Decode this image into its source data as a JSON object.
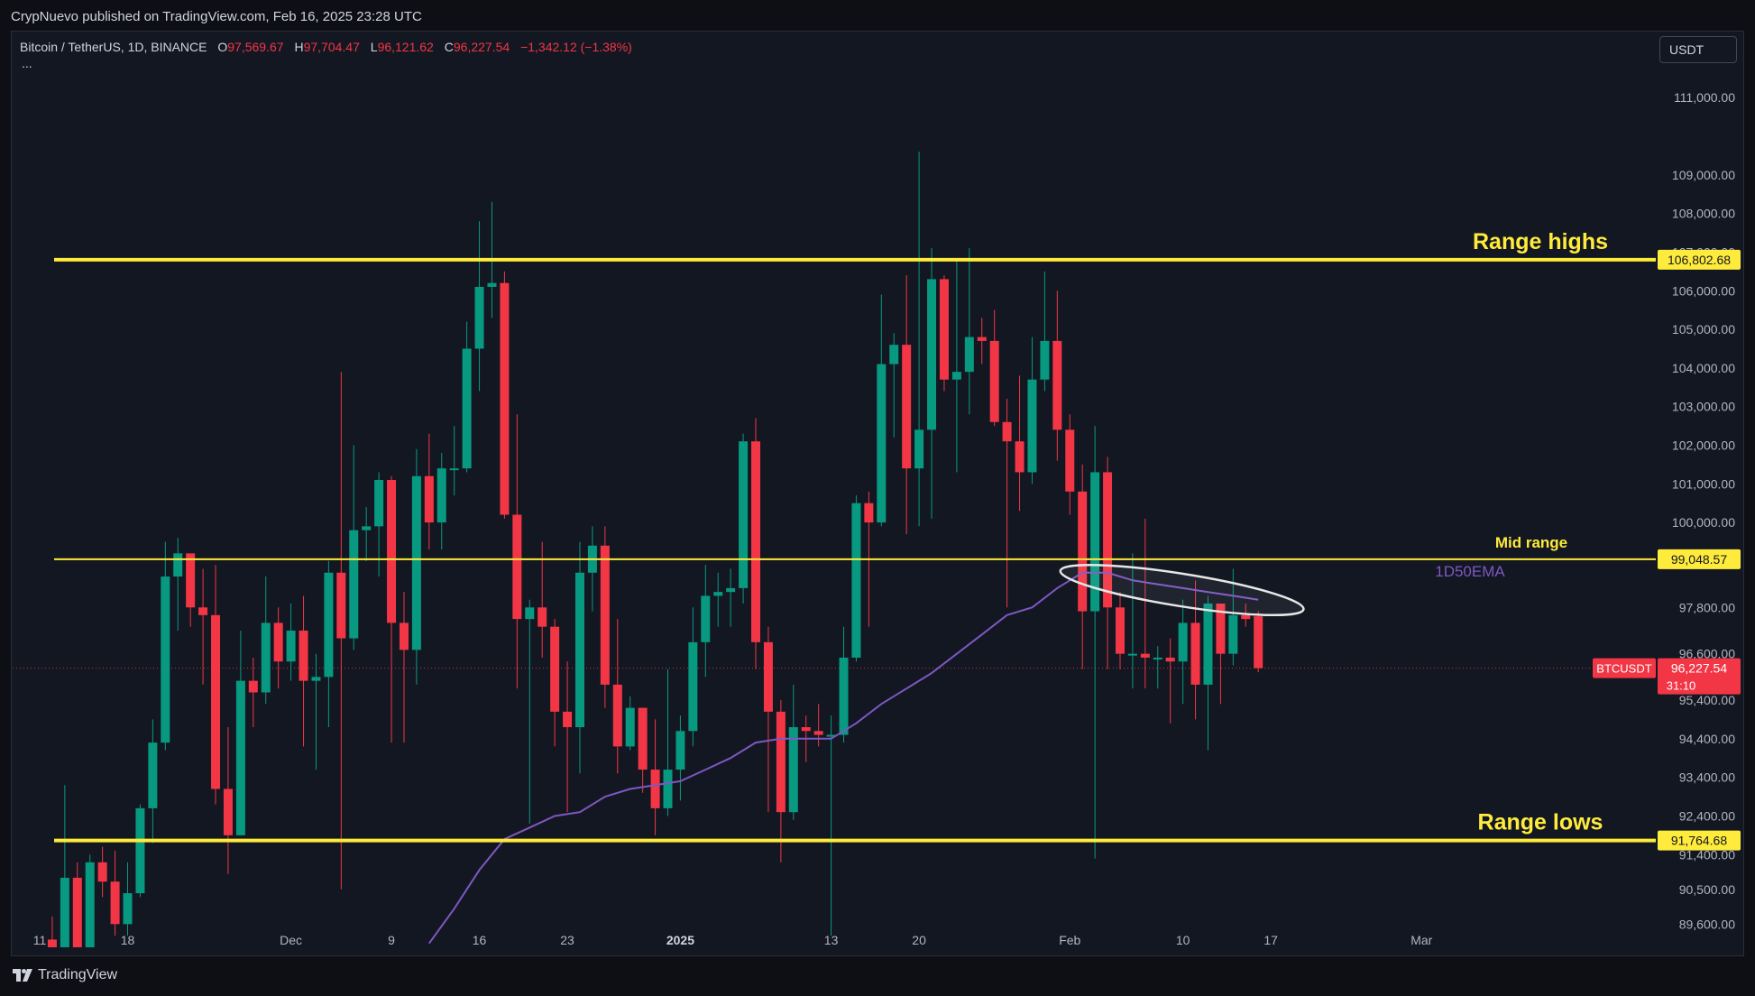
{
  "header": {
    "published": "CrypNuevo published on TradingView.com, Feb 16, 2025 23:28 UTC"
  },
  "legend": {
    "symbol": "Bitcoin / TetherUS, 1D, BINANCE",
    "o_label": "O",
    "o": "97,569.67",
    "h_label": "H",
    "h": "97,704.47",
    "l_label": "L",
    "l": "96,121.62",
    "c_label": "C",
    "c": "96,227.54",
    "change": "−1,342.12 (−1.38%)",
    "more": "..."
  },
  "currency_button": "USDT",
  "footer": {
    "brand": "TradingView"
  },
  "colors": {
    "up": "#089981",
    "down": "#f23645",
    "ema": "#7e57c2",
    "level": "#ffeb3b",
    "background": "#131722"
  },
  "chart_data": {
    "type": "candlestick",
    "symbol": "BTCUSDT",
    "interval": "1D",
    "ylim": [
      89000,
      112500
    ],
    "y_ticks": [
      {
        "value": 111000,
        "label": "111,000.00"
      },
      {
        "value": 109000,
        "label": "109,000.00"
      },
      {
        "value": 108000,
        "label": "108,000.00"
      },
      {
        "value": 107000,
        "label": "107,000.00"
      },
      {
        "value": 106000,
        "label": "106,000.00"
      },
      {
        "value": 105000,
        "label": "105,000.00"
      },
      {
        "value": 104000,
        "label": "104,000.00"
      },
      {
        "value": 103000,
        "label": "103,000.00"
      },
      {
        "value": 102000,
        "label": "102,000.00"
      },
      {
        "value": 101000,
        "label": "101,000.00"
      },
      {
        "value": 100000,
        "label": "100,000.00"
      },
      {
        "value": 97800,
        "label": "97,800.00"
      },
      {
        "value": 96600,
        "label": "96,600.00"
      },
      {
        "value": 95400,
        "label": "95,400.00"
      },
      {
        "value": 94400,
        "label": "94,400.00"
      },
      {
        "value": 93400,
        "label": "93,400.00"
      },
      {
        "value": 92400,
        "label": "92,400.00"
      },
      {
        "value": 91400,
        "label": "91,400.00"
      },
      {
        "value": 90500,
        "label": "90,500.00"
      },
      {
        "value": 89600,
        "label": "89,600.00"
      }
    ],
    "x_ticks": [
      {
        "date": "2024-11-11",
        "label": "11"
      },
      {
        "date": "2024-11-18",
        "label": "18"
      },
      {
        "date": "2024-12-01",
        "label": "Dec"
      },
      {
        "date": "2024-12-09",
        "label": "9"
      },
      {
        "date": "2024-12-16",
        "label": "16"
      },
      {
        "date": "2024-12-23",
        "label": "23"
      },
      {
        "date": "2025-01-01",
        "label": "2025"
      },
      {
        "date": "2025-01-13",
        "label": "13"
      },
      {
        "date": "2025-01-20",
        "label": "20"
      },
      {
        "date": "2025-02-01",
        "label": "Feb"
      },
      {
        "date": "2025-02-10",
        "label": "10"
      },
      {
        "date": "2025-02-17",
        "label": "17"
      },
      {
        "date": "2025-03-01",
        "label": "Mar"
      }
    ],
    "x_range": [
      "2024-11-10",
      "2025-03-02"
    ],
    "candles": [
      {
        "date": "2024-11-12",
        "o": 89200,
        "h": 89800,
        "l": 89000,
        "c": 89000
      },
      {
        "date": "2024-11-13",
        "o": 89000,
        "h": 93200,
        "l": 89000,
        "c": 90800
      },
      {
        "date": "2024-11-14",
        "o": 90800,
        "h": 91200,
        "l": 89000,
        "c": 89000
      },
      {
        "date": "2024-11-15",
        "o": 89000,
        "h": 91400,
        "l": 89000,
        "c": 91200
      },
      {
        "date": "2024-11-16",
        "o": 91200,
        "h": 91600,
        "l": 90300,
        "c": 90700
      },
      {
        "date": "2024-11-17",
        "o": 90700,
        "h": 91500,
        "l": 89300,
        "c": 89600
      },
      {
        "date": "2024-11-18",
        "o": 89600,
        "h": 91200,
        "l": 89300,
        "c": 90400
      },
      {
        "date": "2024-11-19",
        "o": 90400,
        "h": 92700,
        "l": 90300,
        "c": 92600
      },
      {
        "date": "2024-11-20",
        "o": 92600,
        "h": 94900,
        "l": 91700,
        "c": 94300
      },
      {
        "date": "2024-11-21",
        "o": 94300,
        "h": 99500,
        "l": 94100,
        "c": 98600
      },
      {
        "date": "2024-11-22",
        "o": 98600,
        "h": 99600,
        "l": 97200,
        "c": 99200
      },
      {
        "date": "2024-11-23",
        "o": 99200,
        "h": 99000,
        "l": 97300,
        "c": 97800
      },
      {
        "date": "2024-11-24",
        "o": 97800,
        "h": 98800,
        "l": 95800,
        "c": 97600
      },
      {
        "date": "2024-11-25",
        "o": 97600,
        "h": 98900,
        "l": 92700,
        "c": 93100
      },
      {
        "date": "2024-11-26",
        "o": 93100,
        "h": 94700,
        "l": 90900,
        "c": 91900
      },
      {
        "date": "2024-11-27",
        "o": 91900,
        "h": 97200,
        "l": 91900,
        "c": 95900
      },
      {
        "date": "2024-11-28",
        "o": 95900,
        "h": 96500,
        "l": 94700,
        "c": 95600
      },
      {
        "date": "2024-11-29",
        "o": 95600,
        "h": 98600,
        "l": 95300,
        "c": 97400
      },
      {
        "date": "2024-11-30",
        "o": 97400,
        "h": 97800,
        "l": 95700,
        "c": 96400
      },
      {
        "date": "2024-12-01",
        "o": 96400,
        "h": 97900,
        "l": 95900,
        "c": 97200
      },
      {
        "date": "2024-12-02",
        "o": 97200,
        "h": 98100,
        "l": 94200,
        "c": 95900
      },
      {
        "date": "2024-12-03",
        "o": 95900,
        "h": 96600,
        "l": 93600,
        "c": 96000
      },
      {
        "date": "2024-12-04",
        "o": 96000,
        "h": 99000,
        "l": 94700,
        "c": 98700
      },
      {
        "date": "2024-12-05",
        "o": 98700,
        "h": 103900,
        "l": 90500,
        "c": 97000
      },
      {
        "date": "2024-12-06",
        "o": 97000,
        "h": 102000,
        "l": 96700,
        "c": 99800
      },
      {
        "date": "2024-12-07",
        "o": 99800,
        "h": 100400,
        "l": 99000,
        "c": 99900
      },
      {
        "date": "2024-12-08",
        "o": 99900,
        "h": 101300,
        "l": 98600,
        "c": 101100
      },
      {
        "date": "2024-12-09",
        "o": 101100,
        "h": 101200,
        "l": 94300,
        "c": 97400
      },
      {
        "date": "2024-12-10",
        "o": 97400,
        "h": 98200,
        "l": 94300,
        "c": 96700
      },
      {
        "date": "2024-12-11",
        "o": 96700,
        "h": 101900,
        "l": 95800,
        "c": 101200
      },
      {
        "date": "2024-12-12",
        "o": 101200,
        "h": 102300,
        "l": 99300,
        "c": 100000
      },
      {
        "date": "2024-12-13",
        "o": 100000,
        "h": 101800,
        "l": 99300,
        "c": 101400
      },
      {
        "date": "2024-12-14",
        "o": 101400,
        "h": 102500,
        "l": 100700,
        "c": 101400
      },
      {
        "date": "2024-12-15",
        "o": 101400,
        "h": 105200,
        "l": 101300,
        "c": 104500
      },
      {
        "date": "2024-12-16",
        "o": 104500,
        "h": 107800,
        "l": 103400,
        "c": 106100
      },
      {
        "date": "2024-12-17",
        "o": 106100,
        "h": 108300,
        "l": 105300,
        "c": 106200
      },
      {
        "date": "2024-12-18",
        "o": 106200,
        "h": 106500,
        "l": 100100,
        "c": 100200
      },
      {
        "date": "2024-12-19",
        "o": 100200,
        "h": 102800,
        "l": 95700,
        "c": 97500
      },
      {
        "date": "2024-12-20",
        "o": 97500,
        "h": 98000,
        "l": 92200,
        "c": 97800
      },
      {
        "date": "2024-12-21",
        "o": 97800,
        "h": 99500,
        "l": 96500,
        "c": 97300
      },
      {
        "date": "2024-12-22",
        "o": 97300,
        "h": 97500,
        "l": 94200,
        "c": 95100
      },
      {
        "date": "2024-12-23",
        "o": 95100,
        "h": 96400,
        "l": 92500,
        "c": 94700
      },
      {
        "date": "2024-12-24",
        "o": 94700,
        "h": 99500,
        "l": 93500,
        "c": 98700
      },
      {
        "date": "2024-12-25",
        "o": 98700,
        "h": 99900,
        "l": 97700,
        "c": 99400
      },
      {
        "date": "2024-12-26",
        "o": 99400,
        "h": 99900,
        "l": 95200,
        "c": 95800
      },
      {
        "date": "2024-12-27",
        "o": 95800,
        "h": 97500,
        "l": 93500,
        "c": 94200
      },
      {
        "date": "2024-12-28",
        "o": 94200,
        "h": 95500,
        "l": 94100,
        "c": 95200
      },
      {
        "date": "2024-12-29",
        "o": 95200,
        "h": 95200,
        "l": 93000,
        "c": 93600
      },
      {
        "date": "2024-12-30",
        "o": 93600,
        "h": 94900,
        "l": 91900,
        "c": 92600
      },
      {
        "date": "2024-12-31",
        "o": 92600,
        "h": 96200,
        "l": 92400,
        "c": 93600
      },
      {
        "date": "2025-01-01",
        "o": 93600,
        "h": 95000,
        "l": 92800,
        "c": 94600
      },
      {
        "date": "2025-01-02",
        "o": 94600,
        "h": 97800,
        "l": 94200,
        "c": 96900
      },
      {
        "date": "2025-01-03",
        "o": 96900,
        "h": 98900,
        "l": 96000,
        "c": 98100
      },
      {
        "date": "2025-01-04",
        "o": 98100,
        "h": 98700,
        "l": 97300,
        "c": 98200
      },
      {
        "date": "2025-01-05",
        "o": 98200,
        "h": 98800,
        "l": 97300,
        "c": 98300
      },
      {
        "date": "2025-01-06",
        "o": 98300,
        "h": 102300,
        "l": 97900,
        "c": 102100
      },
      {
        "date": "2025-01-07",
        "o": 102100,
        "h": 102700,
        "l": 96200,
        "c": 96900
      },
      {
        "date": "2025-01-08",
        "o": 96900,
        "h": 97300,
        "l": 92500,
        "c": 95100
      },
      {
        "date": "2025-01-09",
        "o": 95100,
        "h": 95400,
        "l": 91200,
        "c": 92500
      },
      {
        "date": "2025-01-10",
        "o": 92500,
        "h": 95800,
        "l": 92300,
        "c": 94700
      },
      {
        "date": "2025-01-11",
        "o": 94700,
        "h": 95000,
        "l": 93800,
        "c": 94600
      },
      {
        "date": "2025-01-12",
        "o": 94600,
        "h": 95300,
        "l": 94200,
        "c": 94500
      },
      {
        "date": "2025-01-13",
        "o": 94500,
        "h": 95000,
        "l": 89300,
        "c": 94500
      },
      {
        "date": "2025-01-14",
        "o": 94500,
        "h": 97300,
        "l": 94300,
        "c": 96500
      },
      {
        "date": "2025-01-15",
        "o": 96500,
        "h": 100700,
        "l": 96400,
        "c": 100500
      },
      {
        "date": "2025-01-16",
        "o": 100500,
        "h": 100800,
        "l": 97300,
        "c": 100000
      },
      {
        "date": "2025-01-17",
        "o": 100000,
        "h": 105900,
        "l": 99900,
        "c": 104100
      },
      {
        "date": "2025-01-18",
        "o": 104100,
        "h": 104900,
        "l": 102200,
        "c": 104600
      },
      {
        "date": "2025-01-19",
        "o": 104600,
        "h": 106400,
        "l": 99700,
        "c": 101400
      },
      {
        "date": "2025-01-20",
        "o": 101400,
        "h": 109600,
        "l": 99900,
        "c": 102400
      },
      {
        "date": "2025-01-21",
        "o": 102400,
        "h": 107100,
        "l": 100100,
        "c": 106300
      },
      {
        "date": "2025-01-22",
        "o": 106300,
        "h": 106400,
        "l": 103400,
        "c": 103700
      },
      {
        "date": "2025-01-23",
        "o": 103700,
        "h": 106800,
        "l": 101300,
        "c": 103900
      },
      {
        "date": "2025-01-24",
        "o": 103900,
        "h": 107100,
        "l": 102800,
        "c": 104800
      },
      {
        "date": "2025-01-25",
        "o": 104800,
        "h": 105300,
        "l": 104100,
        "c": 104700
      },
      {
        "date": "2025-01-26",
        "o": 104700,
        "h": 105500,
        "l": 102500,
        "c": 102600
      },
      {
        "date": "2025-01-27",
        "o": 102600,
        "h": 103200,
        "l": 97800,
        "c": 102100
      },
      {
        "date": "2025-01-28",
        "o": 102100,
        "h": 103800,
        "l": 100300,
        "c": 101300
      },
      {
        "date": "2025-01-29",
        "o": 101300,
        "h": 104800,
        "l": 101000,
        "c": 103700
      },
      {
        "date": "2025-01-30",
        "o": 103700,
        "h": 106500,
        "l": 103400,
        "c": 104700
      },
      {
        "date": "2025-01-31",
        "o": 104700,
        "h": 106000,
        "l": 101600,
        "c": 102400
      },
      {
        "date": "2025-02-01",
        "o": 102400,
        "h": 102800,
        "l": 100200,
        "c": 100800
      },
      {
        "date": "2025-02-02",
        "o": 100800,
        "h": 101500,
        "l": 96200,
        "c": 97700
      },
      {
        "date": "2025-02-03",
        "o": 97700,
        "h": 102500,
        "l": 91300,
        "c": 101300
      },
      {
        "date": "2025-02-04",
        "o": 101300,
        "h": 101700,
        "l": 96200,
        "c": 97800
      },
      {
        "date": "2025-02-05",
        "o": 97800,
        "h": 98200,
        "l": 96200,
        "c": 96600
      },
      {
        "date": "2025-02-06",
        "o": 96600,
        "h": 99200,
        "l": 95700,
        "c": 96600
      },
      {
        "date": "2025-02-07",
        "o": 96600,
        "h": 100100,
        "l": 95700,
        "c": 96500
      },
      {
        "date": "2025-02-08",
        "o": 96500,
        "h": 96800,
        "l": 95700,
        "c": 96500
      },
      {
        "date": "2025-02-09",
        "o": 96500,
        "h": 97000,
        "l": 94800,
        "c": 96400
      },
      {
        "date": "2025-02-10",
        "o": 96400,
        "h": 98000,
        "l": 95300,
        "c": 97400
      },
      {
        "date": "2025-02-11",
        "o": 97400,
        "h": 98500,
        "l": 94900,
        "c": 95800
      },
      {
        "date": "2025-02-12",
        "o": 95800,
        "h": 98100,
        "l": 94100,
        "c": 97900
      },
      {
        "date": "2025-02-13",
        "o": 97900,
        "h": 97900,
        "l": 95300,
        "c": 96600
      },
      {
        "date": "2025-02-14",
        "o": 96600,
        "h": 98800,
        "l": 96300,
        "c": 97600
      },
      {
        "date": "2025-02-15",
        "o": 97600,
        "h": 97900,
        "l": 97300,
        "c": 97500
      },
      {
        "date": "2025-02-16",
        "o": 97570,
        "h": 97704,
        "l": 96122,
        "c": 96228
      }
    ],
    "ema": {
      "name": "1D50EMA",
      "points": [
        {
          "date": "2024-12-12",
          "v": 89100
        },
        {
          "date": "2024-12-14",
          "v": 90000
        },
        {
          "date": "2024-12-16",
          "v": 91000
        },
        {
          "date": "2024-12-18",
          "v": 91800
        },
        {
          "date": "2024-12-20",
          "v": 92100
        },
        {
          "date": "2024-12-22",
          "v": 92400
        },
        {
          "date": "2024-12-24",
          "v": 92500
        },
        {
          "date": "2024-12-26",
          "v": 92900
        },
        {
          "date": "2024-12-28",
          "v": 93100
        },
        {
          "date": "2024-12-30",
          "v": 93200
        },
        {
          "date": "2025-01-01",
          "v": 93300
        },
        {
          "date": "2025-01-03",
          "v": 93600
        },
        {
          "date": "2025-01-05",
          "v": 93900
        },
        {
          "date": "2025-01-07",
          "v": 94300
        },
        {
          "date": "2025-01-09",
          "v": 94400
        },
        {
          "date": "2025-01-11",
          "v": 94400
        },
        {
          "date": "2025-01-13",
          "v": 94400
        },
        {
          "date": "2025-01-15",
          "v": 94800
        },
        {
          "date": "2025-01-17",
          "v": 95300
        },
        {
          "date": "2025-01-19",
          "v": 95700
        },
        {
          "date": "2025-01-21",
          "v": 96100
        },
        {
          "date": "2025-01-23",
          "v": 96600
        },
        {
          "date": "2025-01-25",
          "v": 97100
        },
        {
          "date": "2025-01-27",
          "v": 97600
        },
        {
          "date": "2025-01-29",
          "v": 97800
        },
        {
          "date": "2025-01-31",
          "v": 98300
        },
        {
          "date": "2025-02-02",
          "v": 98700
        },
        {
          "date": "2025-02-04",
          "v": 98700
        },
        {
          "date": "2025-02-06",
          "v": 98500
        },
        {
          "date": "2025-02-08",
          "v": 98400
        },
        {
          "date": "2025-02-10",
          "v": 98300
        },
        {
          "date": "2025-02-12",
          "v": 98200
        },
        {
          "date": "2025-02-14",
          "v": 98100
        },
        {
          "date": "2025-02-16",
          "v": 98000
        }
      ]
    },
    "levels": [
      {
        "name": "Range highs",
        "value": 106802.68,
        "label": "106,802.68"
      },
      {
        "name": "Mid range",
        "value": 99048.57,
        "label": "99,048.57"
      },
      {
        "name": "Range lows",
        "value": 91764.68,
        "label": "91,764.68"
      }
    ],
    "ellipse_annotation": {
      "from": "2025-02-03",
      "to": "2025-02-18",
      "center_value": 98250
    },
    "last_price": {
      "value": 96227.54,
      "label": "96,227.54",
      "symbol_tag": "BTCUSDT",
      "countdown": "31:10"
    }
  }
}
